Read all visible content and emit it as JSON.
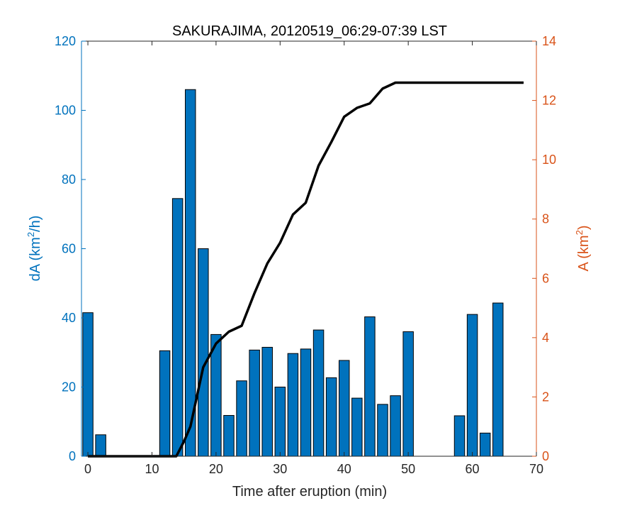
{
  "chart_data": {
    "type": "bar",
    "title": "SAKURAJIMA, 20120519_06:29-07:39 LST",
    "xlabel": "Time after eruption (min)",
    "ylabel_left": {
      "prefix": "dA (km",
      "sup": "2",
      "suffix": "/h)"
    },
    "ylabel_right": {
      "prefix": "A (km",
      "sup": "2",
      "suffix": ")"
    },
    "xlim": [
      -1,
      70
    ],
    "ylim_left": [
      0,
      120
    ],
    "ylim_right": [
      0,
      14
    ],
    "xticks": [
      0,
      10,
      20,
      30,
      40,
      50,
      60,
      70
    ],
    "yticks_left": [
      0,
      20,
      40,
      60,
      80,
      100,
      120
    ],
    "yticks_right": [
      0,
      2,
      4,
      6,
      8,
      10,
      12,
      14
    ],
    "bar_width": 1.6,
    "colors": {
      "bars": "#0072BD",
      "left_axis": "#0072BD",
      "right_axis": "#D95319",
      "line": "#000000",
      "x_axis": "#262626"
    },
    "series": [
      {
        "type": "bar",
        "axis": "left",
        "x": [
          0,
          2,
          12,
          14,
          16,
          18,
          20,
          22,
          24,
          26,
          28,
          30,
          32,
          34,
          36,
          38,
          40,
          42,
          44,
          46,
          48,
          50,
          58,
          60,
          62,
          64
        ],
        "values": [
          41.5,
          6.2,
          30.5,
          74.5,
          106,
          60,
          35.2,
          11.8,
          21.8,
          30.7,
          31.5,
          20,
          29.7,
          31,
          36.5,
          22.7,
          27.7,
          16.8,
          40.3,
          15,
          17.5,
          36,
          11.7,
          41,
          6.7,
          44.3
        ]
      },
      {
        "type": "line",
        "axis": "right",
        "x": [
          0,
          2,
          4,
          6,
          8,
          10,
          12,
          13.8,
          15,
          16,
          17,
          18,
          20,
          22,
          24,
          26,
          28,
          30,
          32,
          34,
          36,
          38,
          40,
          42,
          44,
          46,
          48,
          50,
          52,
          54,
          56,
          58,
          60,
          62,
          64,
          66,
          68
        ],
        "values": [
          0,
          0,
          0,
          0,
          0,
          0,
          0,
          0,
          0.5,
          1,
          2,
          3,
          3.8,
          4.2,
          4.4,
          5.5,
          6.5,
          7.2,
          8.15,
          8.55,
          9.8,
          10.6,
          11.45,
          11.75,
          11.9,
          12.4,
          12.6,
          12.6,
          12.6,
          12.6,
          12.6,
          12.6,
          12.6,
          12.6,
          12.6,
          12.6,
          12.6
        ]
      }
    ]
  }
}
